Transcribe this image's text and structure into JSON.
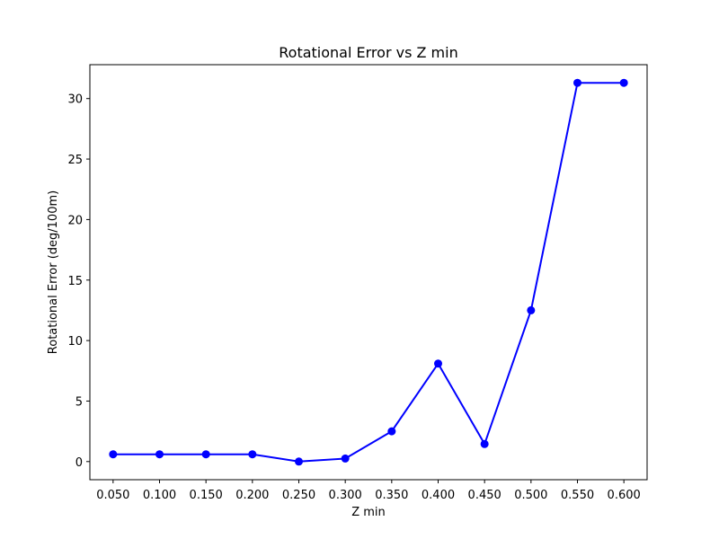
{
  "chart_data": {
    "type": "line",
    "title": "Rotational Error vs Z min",
    "xlabel": "Z min",
    "ylabel": "Rotational Error (deg/100m)",
    "x": [
      0.05,
      0.1,
      0.15,
      0.2,
      0.25,
      0.3,
      0.35,
      0.4,
      0.45,
      0.5,
      0.55,
      0.6
    ],
    "series": [
      {
        "values": [
          0.6,
          0.6,
          0.6,
          0.6,
          0.0,
          0.25,
          2.5,
          8.1,
          1.45,
          12.5,
          31.3,
          31.3
        ],
        "color": "#0000ff",
        "marker": "circle"
      }
    ],
    "xlim": [
      0.025,
      0.625
    ],
    "ylim": [
      -1.5,
      32.8
    ],
    "xticks": [
      0.05,
      0.1,
      0.15,
      0.2,
      0.25,
      0.3,
      0.35,
      0.4,
      0.45,
      0.5,
      0.55,
      0.6
    ],
    "xtick_labels": [
      "0.050",
      "0.100",
      "0.150",
      "0.200",
      "0.250",
      "0.300",
      "0.350",
      "0.400",
      "0.450",
      "0.500",
      "0.550",
      "0.600"
    ],
    "yticks": [
      0,
      5,
      10,
      15,
      20,
      25,
      30
    ],
    "ytick_labels": [
      "0",
      "5",
      "10",
      "15",
      "20",
      "25",
      "30"
    ],
    "grid": false,
    "legend": "none"
  }
}
